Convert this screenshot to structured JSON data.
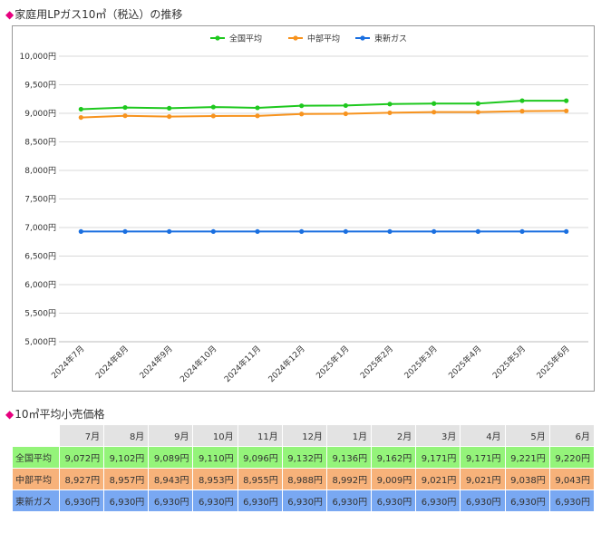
{
  "page": {
    "chart_heading": "家庭用LPガス10㎥（税込）の推移",
    "table_heading": "10㎥平均小売価格",
    "diamond": "◆"
  },
  "chart_data": {
    "type": "line",
    "title": "",
    "xlabel": "",
    "ylabel": "",
    "categories": [
      "2024年7月",
      "2024年8月",
      "2024年9月",
      "2024年10月",
      "2024年11月",
      "2024年12月",
      "2025年1月",
      "2025年2月",
      "2025年3月",
      "2025年4月",
      "2025年5月",
      "2025年6月"
    ],
    "yticks": [
      "10,000円",
      "9,500円",
      "9,000円",
      "8,500円",
      "8,000円",
      "7,500円",
      "7,000円",
      "6,500円",
      "6,000円",
      "5,500円",
      "5,000円"
    ],
    "ylim": [
      5000,
      10000
    ],
    "grid": true,
    "legend_position": "top-center",
    "series": [
      {
        "name": "全国平均",
        "color": "#1ec81e",
        "values": [
          9072,
          9102,
          9089,
          9110,
          9096,
          9132,
          9136,
          9162,
          9171,
          9171,
          9221,
          9220
        ]
      },
      {
        "name": "中部平均",
        "color": "#f7931e",
        "values": [
          8927,
          8957,
          8943,
          8953,
          8955,
          8988,
          8992,
          9009,
          9021,
          9021,
          9038,
          9043
        ]
      },
      {
        "name": "東新ガス",
        "color": "#1a6fe0",
        "values": [
          6930,
          6930,
          6930,
          6930,
          6930,
          6930,
          6930,
          6930,
          6930,
          6930,
          6930,
          6930
        ]
      }
    ]
  },
  "table": {
    "months": [
      "7月",
      "8月",
      "9月",
      "10月",
      "11月",
      "12月",
      "1月",
      "2月",
      "3月",
      "4月",
      "5月",
      "6月"
    ],
    "rows": [
      {
        "label": "全国平均",
        "cells": [
          "9,072円",
          "9,102円",
          "9,089円",
          "9,110円",
          "9,096円",
          "9,132円",
          "9,136円",
          "9,162円",
          "9,171円",
          "9,171円",
          "9,221円",
          "9,220円"
        ]
      },
      {
        "label": "中部平均",
        "cells": [
          "8,927円",
          "8,957円",
          "8,943円",
          "8,953円",
          "8,955円",
          "8,988円",
          "8,992円",
          "9,009円",
          "9,021円",
          "9,021円",
          "9,038円",
          "9,043円"
        ]
      },
      {
        "label": "東新ガス",
        "cells": [
          "6,930円",
          "6,930円",
          "6,930円",
          "6,930円",
          "6,930円",
          "6,930円",
          "6,930円",
          "6,930円",
          "6,930円",
          "6,930円",
          "6,930円",
          "6,930円"
        ]
      }
    ]
  }
}
